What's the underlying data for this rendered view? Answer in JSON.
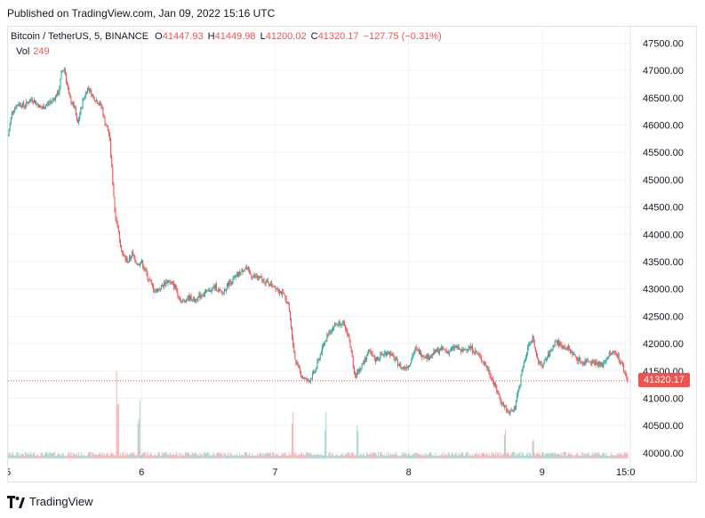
{
  "header": {
    "published": "Published on TradingView.com, Jan 09, 2022 15:16 UTC"
  },
  "legend": {
    "symbol": "Bitcoin / TetherUS, 5, BINANCE",
    "o_label": "O",
    "o_value": "41447.93",
    "h_label": "H",
    "h_value": "41449.98",
    "l_label": "L",
    "l_value": "41200.02",
    "c_label": "C",
    "c_value": "41320.17",
    "change": "−127.75 (−0.31%)",
    "vol_label": "Vol",
    "vol_value": "249"
  },
  "last_price_tag": "41320.17",
  "brand": {
    "name": "TradingView"
  },
  "colors": {
    "up": "#26a69a",
    "down": "#ef5350",
    "grid": "#f0f3fa",
    "text": "#131722"
  },
  "chart_data": {
    "type": "candlestick",
    "symbol": "Bitcoin / TetherUS, 5, BINANCE",
    "y_ticks": [
      "40000.00",
      "40500.00",
      "41000.00",
      "41500.00",
      "42000.00",
      "42500.00",
      "43000.00",
      "43500.00",
      "44000.00",
      "44500.00",
      "45000.00",
      "45500.00",
      "46000.00",
      "46500.00",
      "47000.00",
      "47500.00"
    ],
    "x_ticks": [
      {
        "label": "5",
        "t": 0.0
      },
      {
        "label": "6",
        "t": 1.0
      },
      {
        "label": "7",
        "t": 2.0
      },
      {
        "label": "8",
        "t": 3.0
      },
      {
        "label": "9",
        "t": 4.0
      },
      {
        "label": "15:0",
        "t": 4.625
      }
    ],
    "ylim": [
      39900,
      47800
    ],
    "xlim": [
      0.0,
      4.66
    ],
    "last_price": 41320.17,
    "price_path": [
      [
        0.0,
        45800
      ],
      [
        0.03,
        46250
      ],
      [
        0.08,
        46400
      ],
      [
        0.12,
        46350
      ],
      [
        0.18,
        46480
      ],
      [
        0.25,
        46300
      ],
      [
        0.33,
        46450
      ],
      [
        0.38,
        46600
      ],
      [
        0.4,
        46950
      ],
      [
        0.42,
        47050
      ],
      [
        0.46,
        46500
      ],
      [
        0.5,
        46300
      ],
      [
        0.52,
        46000
      ],
      [
        0.56,
        46450
      ],
      [
        0.6,
        46700
      ],
      [
        0.64,
        46500
      ],
      [
        0.7,
        46350
      ],
      [
        0.72,
        46100
      ],
      [
        0.76,
        45800
      ],
      [
        0.78,
        45100
      ],
      [
        0.8,
        44400
      ],
      [
        0.83,
        44000
      ],
      [
        0.86,
        43600
      ],
      [
        0.9,
        43500
      ],
      [
        0.93,
        43650
      ],
      [
        0.97,
        43450
      ],
      [
        1.0,
        43500
      ],
      [
        1.05,
        43200
      ],
      [
        1.1,
        42950
      ],
      [
        1.15,
        43050
      ],
      [
        1.2,
        43150
      ],
      [
        1.25,
        43050
      ],
      [
        1.3,
        42750
      ],
      [
        1.35,
        42850
      ],
      [
        1.4,
        42800
      ],
      [
        1.45,
        42900
      ],
      [
        1.5,
        42950
      ],
      [
        1.55,
        43050
      ],
      [
        1.6,
        42900
      ],
      [
        1.65,
        43100
      ],
      [
        1.7,
        43200
      ],
      [
        1.78,
        43400
      ],
      [
        1.82,
        43250
      ],
      [
        1.88,
        43200
      ],
      [
        1.95,
        43100
      ],
      [
        2.0,
        43050
      ],
      [
        2.06,
        42900
      ],
      [
        2.1,
        42700
      ],
      [
        2.15,
        41700
      ],
      [
        2.2,
        41400
      ],
      [
        2.25,
        41300
      ],
      [
        2.3,
        41500
      ],
      [
        2.35,
        41900
      ],
      [
        2.4,
        42200
      ],
      [
        2.45,
        42350
      ],
      [
        2.5,
        42400
      ],
      [
        2.55,
        42150
      ],
      [
        2.6,
        41400
      ],
      [
        2.65,
        41600
      ],
      [
        2.7,
        41850
      ],
      [
        2.75,
        41700
      ],
      [
        2.8,
        41800
      ],
      [
        2.85,
        41850
      ],
      [
        2.9,
        41700
      ],
      [
        2.95,
        41550
      ],
      [
        3.0,
        41600
      ],
      [
        3.05,
        41900
      ],
      [
        3.1,
        41800
      ],
      [
        3.15,
        41750
      ],
      [
        3.2,
        41850
      ],
      [
        3.25,
        41900
      ],
      [
        3.3,
        41850
      ],
      [
        3.35,
        41950
      ],
      [
        3.4,
        41850
      ],
      [
        3.45,
        41950
      ],
      [
        3.5,
        41850
      ],
      [
        3.55,
        41700
      ],
      [
        3.6,
        41500
      ],
      [
        3.65,
        41200
      ],
      [
        3.7,
        40900
      ],
      [
        3.75,
        40750
      ],
      [
        3.8,
        40850
      ],
      [
        3.85,
        41500
      ],
      [
        3.9,
        42000
      ],
      [
        3.93,
        42100
      ],
      [
        3.96,
        41700
      ],
      [
        4.0,
        41600
      ],
      [
        4.05,
        41800
      ],
      [
        4.1,
        42050
      ],
      [
        4.15,
        41950
      ],
      [
        4.2,
        41900
      ],
      [
        4.25,
        41750
      ],
      [
        4.3,
        41650
      ],
      [
        4.35,
        41700
      ],
      [
        4.4,
        41650
      ],
      [
        4.45,
        41600
      ],
      [
        4.5,
        41800
      ],
      [
        4.55,
        41850
      ],
      [
        4.6,
        41600
      ],
      [
        4.64,
        41320
      ]
    ],
    "volume_spikes": [
      {
        "t": 0.82,
        "v": 1.0
      },
      {
        "t": 0.98,
        "v": 0.55
      },
      {
        "t": 2.13,
        "v": 0.52
      },
      {
        "t": 2.38,
        "v": 0.45
      },
      {
        "t": 2.62,
        "v": 0.32
      },
      {
        "t": 3.72,
        "v": 0.28
      },
      {
        "t": 3.93,
        "v": 0.22
      }
    ]
  }
}
